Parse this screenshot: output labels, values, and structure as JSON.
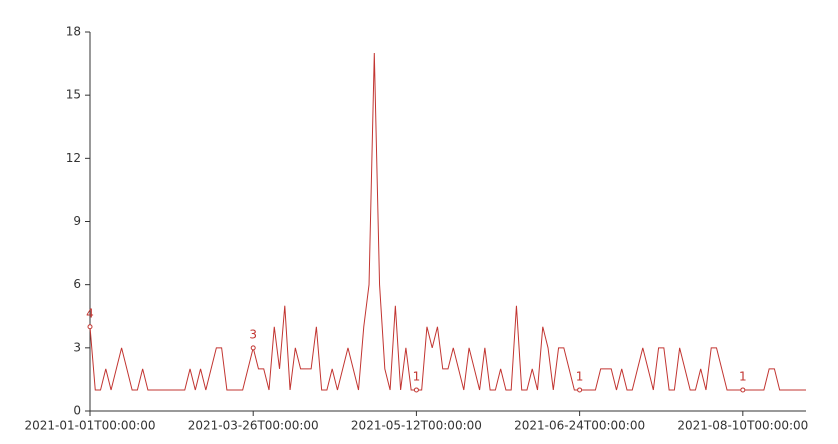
{
  "chart_data": {
    "type": "line",
    "categories": [
      "2021-01-01T00:00:00",
      null,
      null,
      null,
      null,
      null,
      null,
      null,
      null,
      null,
      null,
      null,
      null,
      null,
      null,
      null,
      null,
      null,
      null,
      null,
      null,
      null,
      null,
      null,
      null,
      null,
      null,
      null,
      null,
      null,
      null,
      "2021-03-26T00:00:00",
      null,
      null,
      null,
      null,
      null,
      null,
      null,
      null,
      null,
      null,
      null,
      null,
      null,
      null,
      null,
      null,
      null,
      null,
      null,
      null,
      null,
      null,
      null,
      null,
      null,
      null,
      null,
      null,
      null,
      null,
      "2021-05-12T00:00:00",
      null,
      null,
      null,
      null,
      null,
      null,
      null,
      null,
      null,
      null,
      null,
      null,
      null,
      null,
      null,
      null,
      null,
      null,
      null,
      null,
      null,
      null,
      null,
      null,
      null,
      null,
      null,
      null,
      null,
      null,
      "2021-06-24T00:00:00",
      null,
      null,
      null,
      null,
      null,
      null,
      null,
      null,
      null,
      null,
      null,
      null,
      null,
      null,
      null,
      null,
      null,
      null,
      null,
      null,
      null,
      null,
      null,
      null,
      null,
      null,
      null,
      null,
      null,
      null,
      "2021-08-10T00:00:00",
      null,
      null,
      null,
      null,
      null,
      null,
      null,
      null,
      null,
      null,
      null,
      null
    ],
    "values": [
      4,
      1,
      1,
      2,
      1,
      2,
      3,
      2,
      1,
      1,
      2,
      1,
      1,
      1,
      1,
      1,
      1,
      1,
      1,
      2,
      1,
      2,
      1,
      2,
      3,
      3,
      1,
      1,
      1,
      1,
      2,
      3,
      2,
      2,
      1,
      4,
      2,
      5,
      1,
      3,
      2,
      2,
      2,
      4,
      1,
      1,
      2,
      1,
      2,
      3,
      2,
      1,
      4,
      6,
      17,
      6,
      2,
      1,
      5,
      1,
      3,
      1,
      1,
      1,
      4,
      3,
      4,
      2,
      2,
      3,
      2,
      1,
      3,
      2,
      1,
      3,
      1,
      1,
      2,
      1,
      1,
      5,
      1,
      1,
      2,
      1,
      4,
      3,
      1,
      3,
      3,
      2,
      1,
      1,
      1,
      1,
      1,
      2,
      2,
      2,
      1,
      2,
      1,
      1,
      2,
      3,
      2,
      1,
      3,
      3,
      1,
      1,
      3,
      2,
      1,
      1,
      2,
      1,
      3,
      3,
      2,
      1,
      1,
      1,
      1,
      1,
      1,
      1,
      1,
      2,
      2,
      1,
      1,
      1,
      1,
      1,
      1
    ],
    "color": "#c23531",
    "ylim": [
      0,
      18
    ],
    "yticks": [
      0,
      3,
      6,
      9,
      12,
      15,
      18
    ],
    "grid": false
  }
}
